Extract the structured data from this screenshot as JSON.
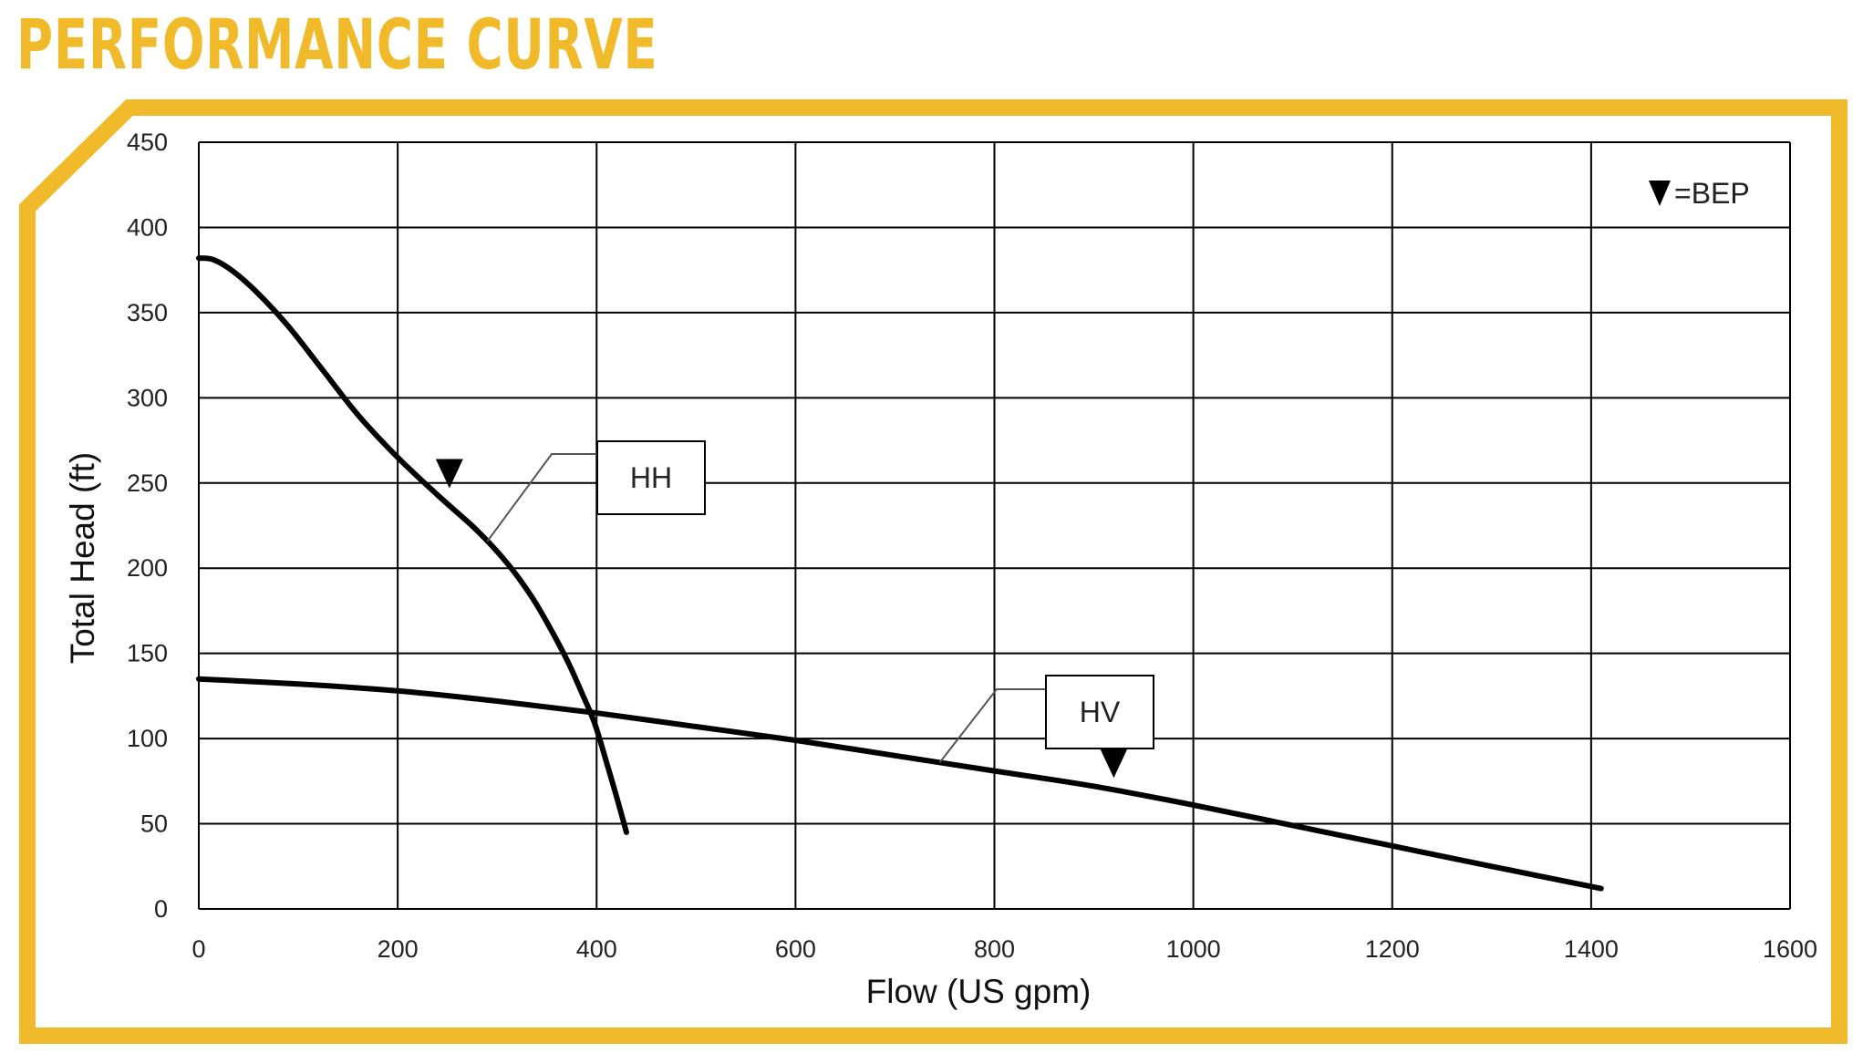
{
  "title": "PERFORMANCE CURVE",
  "colors": {
    "accent": "#F0BA2B",
    "grid": "#000000",
    "curve": "#000000"
  },
  "chart_data": {
    "type": "line",
    "xlabel": "Flow (US gpm)",
    "ylabel": "Total Head (ft)",
    "xlim": [
      0,
      1600
    ],
    "ylim": [
      0,
      450
    ],
    "xticks": [
      0,
      200,
      400,
      600,
      800,
      1000,
      1200,
      1400,
      1600
    ],
    "yticks": [
      0,
      50,
      100,
      150,
      200,
      250,
      300,
      350,
      400,
      450
    ],
    "grid": true,
    "legend": {
      "symbol": "▼",
      "text": "=BEP",
      "placement": "top-right"
    },
    "series": [
      {
        "name": "HH",
        "x": [
          0,
          15,
          35,
          60,
          90,
          125,
          160,
          200,
          240,
          280,
          310,
          335,
          355,
          372,
          385,
          398,
          410,
          420,
          430
        ],
        "y": [
          382,
          381,
          374,
          361,
          342,
          316,
          290,
          265,
          243,
          222,
          203,
          183,
          163,
          144,
          127,
          109,
          86,
          66,
          45
        ],
        "bep": {
          "x": 252,
          "y": 248
        },
        "label_x_at_curve": 290
      },
      {
        "name": "HV",
        "x": [
          0,
          100,
          200,
          300,
          400,
          500,
          600,
          700,
          800,
          900,
          1000,
          1100,
          1200,
          1300,
          1410
        ],
        "y": [
          135,
          132,
          128,
          122,
          115,
          107,
          99,
          90,
          81,
          72,
          61,
          49,
          37,
          25,
          12
        ],
        "bep": {
          "x": 920,
          "y": 78
        },
        "label_x_at_curve": 745
      }
    ]
  }
}
